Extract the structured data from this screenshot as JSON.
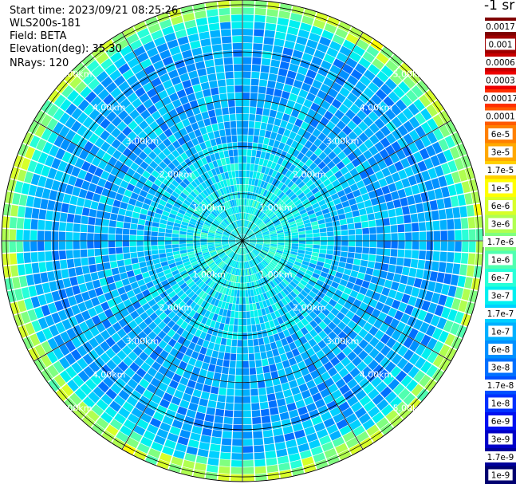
{
  "header": {
    "start_time": "Start time: 2023/09/21 08:25:26",
    "instrument": "WLS200s-181",
    "field": "Field: BETA",
    "elevation": "Elevation(deg): 35.30",
    "nrays": "NRays: 120"
  },
  "colorbar": {
    "units_label": "-1 sr",
    "stops": [
      {
        "label": "0.0017",
        "color": "#7f0000"
      },
      {
        "label": "0.001",
        "color": "#a00000"
      },
      {
        "label": "0.0006",
        "color": "#c80000"
      },
      {
        "label": "0.0003",
        "color": "#ee0000"
      },
      {
        "label": "0.00017",
        "color": "#ff3000"
      },
      {
        "label": "0.0001",
        "color": "#ff5a00"
      },
      {
        "label": "6e-5",
        "color": "#ff8000"
      },
      {
        "label": "3e-5",
        "color": "#ffa800"
      },
      {
        "label": "1.7e-5",
        "color": "#ffd000"
      },
      {
        "label": "1e-5",
        "color": "#ffff00"
      },
      {
        "label": "6e-6",
        "color": "#d8ff28"
      },
      {
        "label": "3e-6",
        "color": "#b0ff50"
      },
      {
        "label": "1.7e-6",
        "color": "#80ff80"
      },
      {
        "label": "1e-6",
        "color": "#50ffb0"
      },
      {
        "label": "6e-7",
        "color": "#28ffd8"
      },
      {
        "label": "3e-7",
        "color": "#00f0f0"
      },
      {
        "label": "1.7e-7",
        "color": "#00d0ff"
      },
      {
        "label": "1e-7",
        "color": "#00b0ff"
      },
      {
        "label": "6e-8",
        "color": "#0090ff"
      },
      {
        "label": "3e-8",
        "color": "#0070ff"
      },
      {
        "label": "1.7e-8",
        "color": "#0050ff"
      },
      {
        "label": "1e-8",
        "color": "#0030ff"
      },
      {
        "label": "6e-9",
        "color": "#0010f0"
      },
      {
        "label": "3e-9",
        "color": "#0000c8"
      },
      {
        "label": "1.7e-9",
        "color": "#00009a"
      },
      {
        "label": "1e-9",
        "color": "#000070"
      }
    ]
  },
  "chart_data": {
    "type": "heatmap",
    "projection": "polar-ppi",
    "range_rings_km": [
      1,
      2,
      3,
      4,
      5
    ],
    "range_labels": [
      "1.00km",
      "2.00km",
      "3.00km",
      "4.00km",
      "5.00km"
    ],
    "max_range_km": 5.1,
    "n_rays": 120,
    "spokes_deg": [
      0,
      30,
      60,
      90,
      120,
      150,
      180,
      210,
      240,
      270,
      300,
      330
    ],
    "grid": true,
    "range_profile": [
      {
        "range_km": 0.0,
        "beta": 4e-07
      },
      {
        "range_km": 1.0,
        "beta": 3e-07
      },
      {
        "range_km": 1.7,
        "beta": 1.7e-07
      },
      {
        "range_km": 2.5,
        "beta": 1e-07
      },
      {
        "range_km": 3.5,
        "beta": 8e-08
      },
      {
        "range_km": 4.5,
        "beta": 1e-07
      },
      {
        "range_km": 4.95,
        "beta": 3e-06
      }
    ]
  }
}
